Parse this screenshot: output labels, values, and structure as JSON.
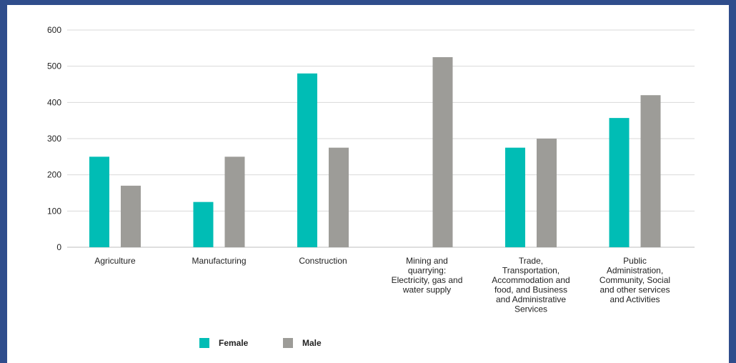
{
  "chart_data": {
    "type": "bar",
    "categories": [
      [
        "Agriculture"
      ],
      [
        "Manufacturing"
      ],
      [
        "Construction"
      ],
      [
        "Mining and",
        "quarrying:",
        "Electricity, gas and",
        "water supply"
      ],
      [
        "Trade,",
        "Transportation,",
        "Accommodation and",
        "food, and Business",
        "and Administrative",
        "Services"
      ],
      [
        "Public",
        "Administration,",
        "Community, Social",
        "and other services",
        "and Activities"
      ]
    ],
    "series": [
      {
        "name": "Female",
        "color": "#00bdb5",
        "values": [
          250,
          125,
          480,
          0,
          275,
          357
        ]
      },
      {
        "name": "Male",
        "color": "#9d9c98",
        "values": [
          170,
          250,
          275,
          525,
          300,
          420
        ]
      }
    ],
    "y_ticks": [
      0,
      100,
      200,
      300,
      400,
      500,
      600
    ],
    "ylim": [
      0,
      600
    ],
    "grid": true,
    "legend_position": "bottom-left"
  }
}
